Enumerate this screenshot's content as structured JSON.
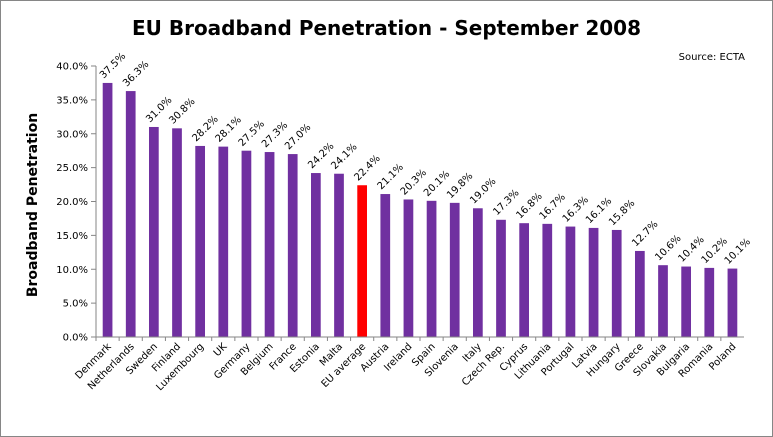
{
  "chart_data": {
    "type": "bar",
    "title": "EU Broadband Penetration - September 2008",
    "source": "Source:  ECTA",
    "ylabel": "Broadband Penetration",
    "xlabel": "",
    "ylim": [
      0,
      40
    ],
    "yticks": [
      "0.0%",
      "5.0%",
      "10.0%",
      "15.0%",
      "20.0%",
      "25.0%",
      "30.0%",
      "35.0%",
      "40.0%"
    ],
    "grid": false,
    "legend": "none",
    "bar_color": "#7030A0",
    "highlight_color": "#FF0000",
    "highlight_category": "EU average",
    "categories": [
      "Denmark",
      "Netherlands",
      "Sweden",
      "Finland",
      "Luxembourg",
      "UK",
      "Germany",
      "Belgium",
      "France",
      "Estonia",
      "Malta",
      "EU average",
      "Austria",
      "Ireland",
      "Spain",
      "Slovenia",
      "Italy",
      "Czech Rep.",
      "Cyprus",
      "Lithuania",
      "Portugal",
      "Latvia",
      "Hungary",
      "Greece",
      "Slovakia",
      "Bulgaria",
      "Romania",
      "Poland"
    ],
    "values": [
      37.5,
      36.3,
      31.0,
      30.8,
      28.2,
      28.1,
      27.5,
      27.3,
      27.0,
      24.2,
      24.1,
      22.4,
      21.1,
      20.3,
      20.1,
      19.8,
      19.0,
      17.3,
      16.8,
      16.7,
      16.3,
      16.1,
      15.8,
      12.7,
      10.6,
      10.4,
      10.2,
      10.1
    ],
    "data_labels": [
      "37.5%",
      "36.3%",
      "31.0%",
      "30.8%",
      "28.2%",
      "28.1%",
      "27.5%",
      "27.3%",
      "27.0%",
      "24.2%",
      "24.1%",
      "22.4%",
      "21.1%",
      "20.3%",
      "20.1%",
      "19.8%",
      "19.0%",
      "17.3%",
      "16.8%",
      "16.7%",
      "16.3%",
      "16.1%",
      "15.8%",
      "12.7%",
      "10.6%",
      "10.4%",
      "10.2%",
      "10.1%"
    ]
  }
}
